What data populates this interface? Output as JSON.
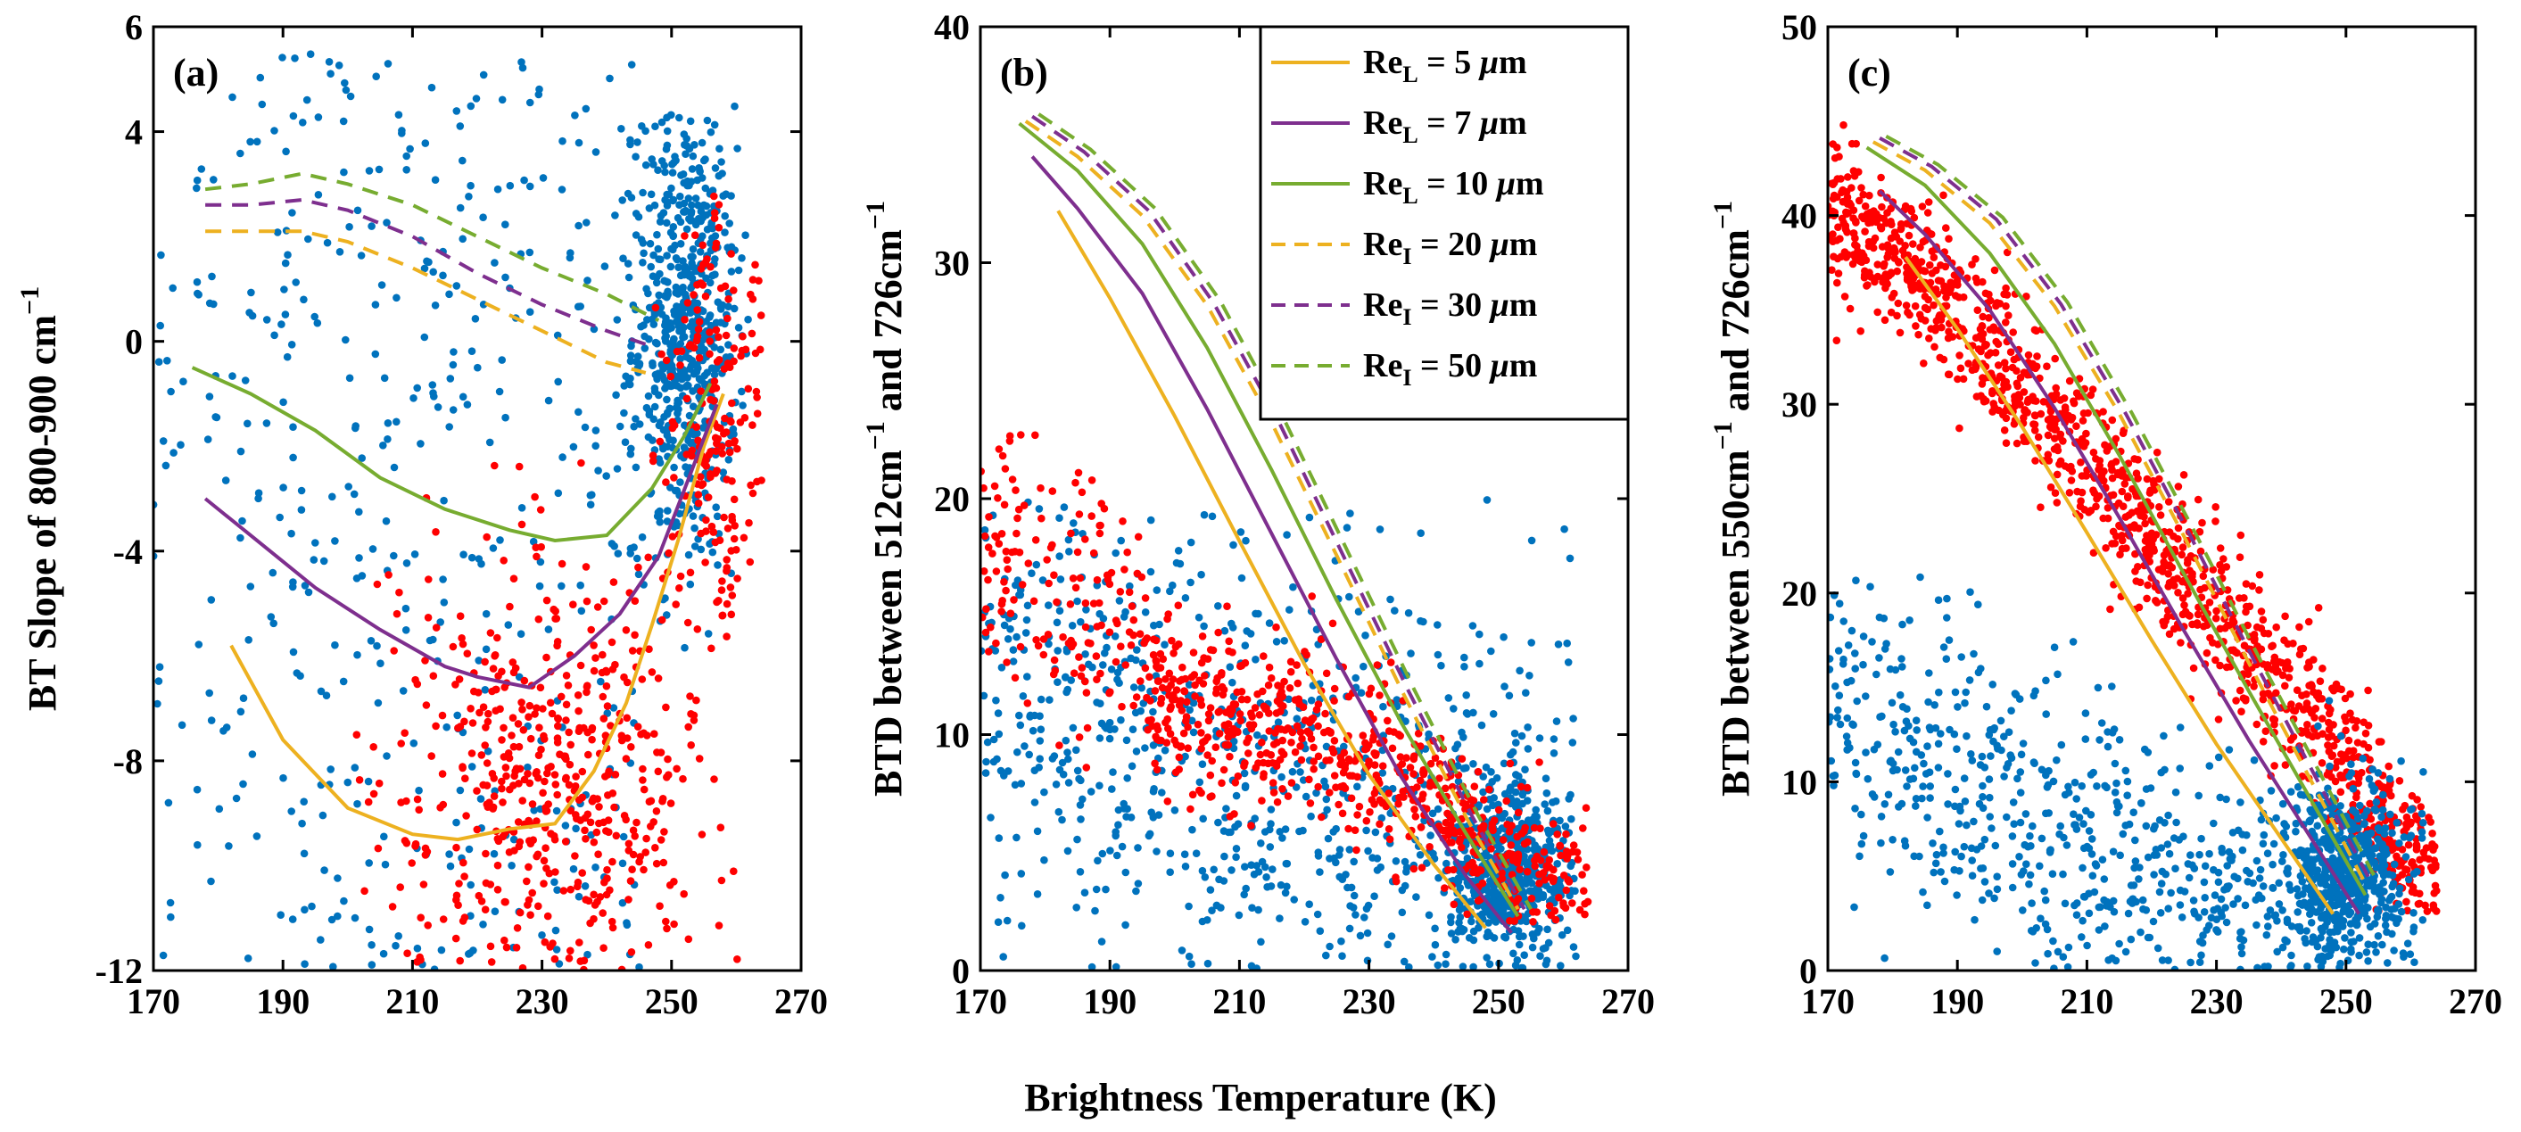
{
  "figure": {
    "xlabel": "Brightness Temperature (K)",
    "colors": {
      "blue": "#0072BD",
      "red": "#FF0000",
      "ReL5": "#EDB120",
      "ReL7": "#7E2F8E",
      "ReL10": "#77AC30",
      "ReI20": "#EDB120",
      "ReI30": "#7E2F8E",
      "ReI50": "#77AC30"
    }
  },
  "legend": [
    {
      "key": "ReL5",
      "main": "Re",
      "sub": "L",
      "rest": " = 5 ",
      "mu": "μ",
      "unit": "m",
      "style": "solid"
    },
    {
      "key": "ReL7",
      "main": "Re",
      "sub": "L",
      "rest": " = 7 ",
      "mu": "μ",
      "unit": "m",
      "style": "solid"
    },
    {
      "key": "ReL10",
      "main": "Re",
      "sub": "L",
      "rest": " = 10 ",
      "mu": "μ",
      "unit": "m",
      "style": "solid"
    },
    {
      "key": "ReI20",
      "main": "Re",
      "sub": "I",
      "rest": " = 20 ",
      "mu": "μ",
      "unit": "m",
      "style": "dashed"
    },
    {
      "key": "ReI30",
      "main": "Re",
      "sub": "I",
      "rest": " = 30 ",
      "mu": "μ",
      "unit": "m",
      "style": "dashed"
    },
    {
      "key": "ReI50",
      "main": "Re",
      "sub": "I",
      "rest": " = 50 ",
      "mu": "μ",
      "unit": "m",
      "style": "dashed"
    }
  ],
  "chart_data": [
    {
      "type": "scatter",
      "panel": "(a)",
      "ylabel_main": "BT Slope of 800-900 cm",
      "ylabel_sup": "−1",
      "xlim": [
        170,
        270
      ],
      "ylim": [
        -12,
        6
      ],
      "xticks": [
        170,
        190,
        210,
        230,
        250,
        270
      ],
      "yticks": [
        -12,
        -8,
        -4,
        0,
        4,
        6
      ],
      "xtick_labels": [
        "170",
        "190",
        "210",
        "230",
        "250",
        "270"
      ],
      "ytick_labels": [
        "-12",
        "-8",
        "-4",
        "0",
        "4",
        "6"
      ],
      "lines": [
        {
          "key": "ReL5",
          "style": "solid",
          "x": [
            182,
            190,
            200,
            210,
            217,
            225,
            232,
            238,
            243,
            247,
            251,
            255,
            258
          ],
          "y": [
            -5.8,
            -7.6,
            -8.9,
            -9.4,
            -9.5,
            -9.3,
            -9.2,
            -8.2,
            -6.9,
            -5.4,
            -3.8,
            -2.0,
            -1.0
          ]
        },
        {
          "key": "ReL7",
          "style": "solid",
          "x": [
            178,
            185,
            195,
            205,
            215,
            220,
            228,
            235,
            242,
            248,
            253,
            257
          ],
          "y": [
            -3.0,
            -3.7,
            -4.7,
            -5.5,
            -6.2,
            -6.4,
            -6.6,
            -6.0,
            -5.2,
            -4.1,
            -2.5,
            -1.2
          ]
        },
        {
          "key": "ReL10",
          "style": "solid",
          "x": [
            176,
            185,
            195,
            205,
            215,
            225,
            232,
            240,
            247,
            252,
            256
          ],
          "y": [
            -0.5,
            -1.0,
            -1.7,
            -2.6,
            -3.2,
            -3.6,
            -3.8,
            -3.7,
            -2.8,
            -1.8,
            -0.8
          ]
        },
        {
          "key": "ReI20",
          "style": "dashed",
          "x": [
            178,
            185,
            193,
            200,
            210,
            220,
            230,
            240,
            246
          ],
          "y": [
            2.1,
            2.1,
            2.1,
            1.9,
            1.4,
            0.8,
            0.2,
            -0.4,
            -0.6
          ]
        },
        {
          "key": "ReI30",
          "style": "dashed",
          "x": [
            178,
            185,
            193,
            200,
            210,
            220,
            230,
            240,
            247
          ],
          "y": [
            2.6,
            2.6,
            2.7,
            2.5,
            2.0,
            1.3,
            0.7,
            0.2,
            -0.1
          ]
        },
        {
          "key": "ReI50",
          "style": "dashed",
          "x": [
            178,
            185,
            193,
            200,
            210,
            220,
            230,
            240,
            248
          ],
          "y": [
            2.9,
            3.0,
            3.2,
            3.0,
            2.6,
            2.0,
            1.4,
            0.9,
            0.4
          ]
        }
      ],
      "scatter_groups": [
        {
          "color": "blue",
          "count": 450,
          "x": [
            170,
            245
          ],
          "y": [
            -12,
            5.5
          ],
          "form": "uniform"
        },
        {
          "color": "blue",
          "count": 650,
          "x": [
            242,
            262
          ],
          "y": [
            -6,
            4.5
          ],
          "form": "cluster",
          "center": [
            252,
            0.2
          ],
          "spread": [
            4,
            2.2
          ]
        },
        {
          "color": "red",
          "count": 550,
          "x": [
            200,
            262
          ],
          "y": [
            -12,
            0
          ],
          "form": "band",
          "center": [
            232,
            -8.5
          ],
          "spread": [
            13,
            2.3
          ]
        },
        {
          "color": "red",
          "count": 200,
          "x": [
            240,
            264
          ],
          "y": [
            -6,
            3
          ],
          "form": "cluster",
          "center": [
            257,
            -1.5
          ],
          "spread": [
            4,
            2.0
          ]
        }
      ]
    },
    {
      "type": "scatter",
      "panel": "(b)",
      "ylabel_main": "BTD between 512cm",
      "ylabel_mid": " and 726cm",
      "ylabel_sup": "−1",
      "xlim": [
        170,
        270
      ],
      "ylim": [
        0,
        40
      ],
      "xticks": [
        170,
        190,
        210,
        230,
        250,
        270
      ],
      "yticks": [
        0,
        10,
        20,
        30,
        40
      ],
      "xtick_labels": [
        "170",
        "190",
        "210",
        "230",
        "250",
        "270"
      ],
      "ytick_labels": [
        "0",
        "10",
        "20",
        "30",
        "40"
      ],
      "lines": [
        {
          "key": "ReL5",
          "style": "solid",
          "x": [
            182,
            190,
            200,
            210,
            220,
            230,
            240,
            248
          ],
          "y": [
            32.2,
            28.5,
            23.5,
            18.2,
            13.0,
            8.3,
            4.5,
            1.8
          ]
        },
        {
          "key": "ReL7",
          "style": "solid",
          "x": [
            178,
            185,
            195,
            205,
            215,
            225,
            235,
            245,
            252
          ],
          "y": [
            34.5,
            32.3,
            28.7,
            23.8,
            18.5,
            13.2,
            8.2,
            4.0,
            1.6
          ]
        },
        {
          "key": "ReL10",
          "style": "solid",
          "x": [
            176,
            185,
            195,
            205,
            215,
            225,
            235,
            245,
            253
          ],
          "y": [
            35.9,
            33.9,
            30.8,
            26.4,
            21.2,
            15.7,
            10.5,
            5.8,
            2.3
          ]
        },
        {
          "key": "ReI20",
          "style": "dashed",
          "x": [
            177,
            185,
            195,
            205,
            215,
            225,
            235,
            245,
            253
          ],
          "y": [
            36.0,
            34.5,
            32.0,
            28.2,
            23.2,
            17.6,
            11.9,
            6.5,
            2.6
          ]
        },
        {
          "key": "ReI30",
          "style": "dashed",
          "x": [
            178,
            186,
            196,
            206,
            216,
            226,
            236,
            246,
            254
          ],
          "y": [
            36.2,
            34.7,
            32.2,
            28.3,
            23.3,
            17.6,
            11.9,
            6.5,
            2.6
          ]
        },
        {
          "key": "ReI50",
          "style": "dashed",
          "x": [
            179,
            187,
            197,
            207,
            217,
            227,
            237,
            247,
            255
          ],
          "y": [
            36.3,
            34.8,
            32.3,
            28.4,
            23.3,
            17.6,
            11.9,
            6.5,
            2.6
          ]
        }
      ],
      "scatter_groups": [
        {
          "color": "blue",
          "count": 900,
          "x": [
            170,
            262
          ],
          "y": [
            0,
            20
          ],
          "form": "band",
          "trend": [
            [
              170,
              12
            ],
            [
              265,
              3
            ]
          ],
          "spread": [
            0,
            5.5
          ]
        },
        {
          "color": "blue",
          "count": 500,
          "x": [
            242,
            262
          ],
          "y": [
            0,
            10
          ],
          "form": "cluster",
          "center": [
            251,
            4.2
          ],
          "spread": [
            4,
            1.8
          ]
        },
        {
          "color": "red",
          "count": 150,
          "x": [
            170,
            195
          ],
          "y": [
            8,
            25
          ],
          "form": "band",
          "trend": [
            [
              170,
              18
            ],
            [
              195,
              14
            ]
          ],
          "spread": [
            0,
            3
          ]
        },
        {
          "color": "red",
          "count": 650,
          "x": [
            195,
            264
          ],
          "y": [
            2,
            16
          ],
          "form": "band",
          "trend": [
            [
              195,
              12
            ],
            [
              230,
              9
            ],
            [
              265,
              2.5
            ]
          ],
          "spread": [
            0,
            1.8
          ]
        }
      ]
    },
    {
      "type": "scatter",
      "panel": "(c)",
      "ylabel_main": "BTD between 550cm",
      "ylabel_mid": " and 726cm",
      "ylabel_sup": "−1",
      "xlim": [
        170,
        270
      ],
      "ylim": [
        0,
        50
      ],
      "xticks": [
        170,
        190,
        210,
        230,
        250,
        270
      ],
      "yticks": [
        0,
        10,
        20,
        30,
        40,
        50
      ],
      "xtick_labels": [
        "170",
        "190",
        "210",
        "230",
        "250",
        "270"
      ],
      "ytick_labels": [
        "0",
        "10",
        "20",
        "30",
        "40",
        "50"
      ],
      "lines": [
        {
          "key": "ReL5",
          "style": "solid",
          "x": [
            182,
            190,
            200,
            210,
            220,
            230,
            240,
            248
          ],
          "y": [
            37.8,
            34.0,
            28.8,
            23.2,
            17.5,
            12.0,
            7.0,
            3.0
          ]
        },
        {
          "key": "ReL7",
          "style": "solid",
          "x": [
            178,
            185,
            195,
            205,
            215,
            225,
            235,
            245,
            252
          ],
          "y": [
            41.3,
            39.0,
            35.0,
            29.8,
            24.0,
            18.0,
            12.2,
            6.8,
            3.0
          ]
        },
        {
          "key": "ReL10",
          "style": "solid",
          "x": [
            176,
            185,
            195,
            205,
            215,
            225,
            235,
            245,
            253
          ],
          "y": [
            43.6,
            41.6,
            38.0,
            33.2,
            27.3,
            21.0,
            14.8,
            8.8,
            4.0
          ]
        },
        {
          "key": "ReI20",
          "style": "dashed",
          "x": [
            177,
            185,
            195,
            205,
            215,
            225,
            235,
            245,
            253
          ],
          "y": [
            43.9,
            42.4,
            39.6,
            35.2,
            29.5,
            23.0,
            16.3,
            9.8,
            4.6
          ]
        },
        {
          "key": "ReI30",
          "style": "dashed",
          "x": [
            178,
            186,
            196,
            206,
            216,
            226,
            236,
            246,
            254
          ],
          "y": [
            44.1,
            42.6,
            39.8,
            35.3,
            29.5,
            23.0,
            16.3,
            9.8,
            4.6
          ]
        },
        {
          "key": "ReI50",
          "style": "dashed",
          "x": [
            179,
            187,
            197,
            207,
            217,
            227,
            237,
            247,
            255
          ],
          "y": [
            44.2,
            42.7,
            39.9,
            35.4,
            29.5,
            23.0,
            16.3,
            9.8,
            4.6
          ]
        }
      ],
      "scatter_groups": [
        {
          "color": "red",
          "count": 1300,
          "x": [
            170,
            264
          ],
          "y": [
            3,
            45
          ],
          "form": "band",
          "trend": [
            [
              170,
              41
            ],
            [
              190,
              35
            ],
            [
              210,
              27
            ],
            [
              230,
              19
            ],
            [
              250,
              11
            ],
            [
              262,
              5
            ]
          ],
          "spread": [
            0,
            2.0
          ]
        },
        {
          "color": "blue",
          "count": 800,
          "x": [
            170,
            262
          ],
          "y": [
            0,
            21
          ],
          "form": "band",
          "trend": [
            [
              170,
              14
            ],
            [
              200,
              8
            ],
            [
              230,
              4
            ],
            [
              262,
              2
            ]
          ],
          "spread": [
            0,
            4.5
          ]
        },
        {
          "color": "blue",
          "count": 450,
          "x": [
            240,
            262
          ],
          "y": [
            0,
            12
          ],
          "form": "cluster",
          "center": [
            250,
            5.0
          ],
          "spread": [
            4,
            2.0
          ]
        }
      ]
    }
  ]
}
